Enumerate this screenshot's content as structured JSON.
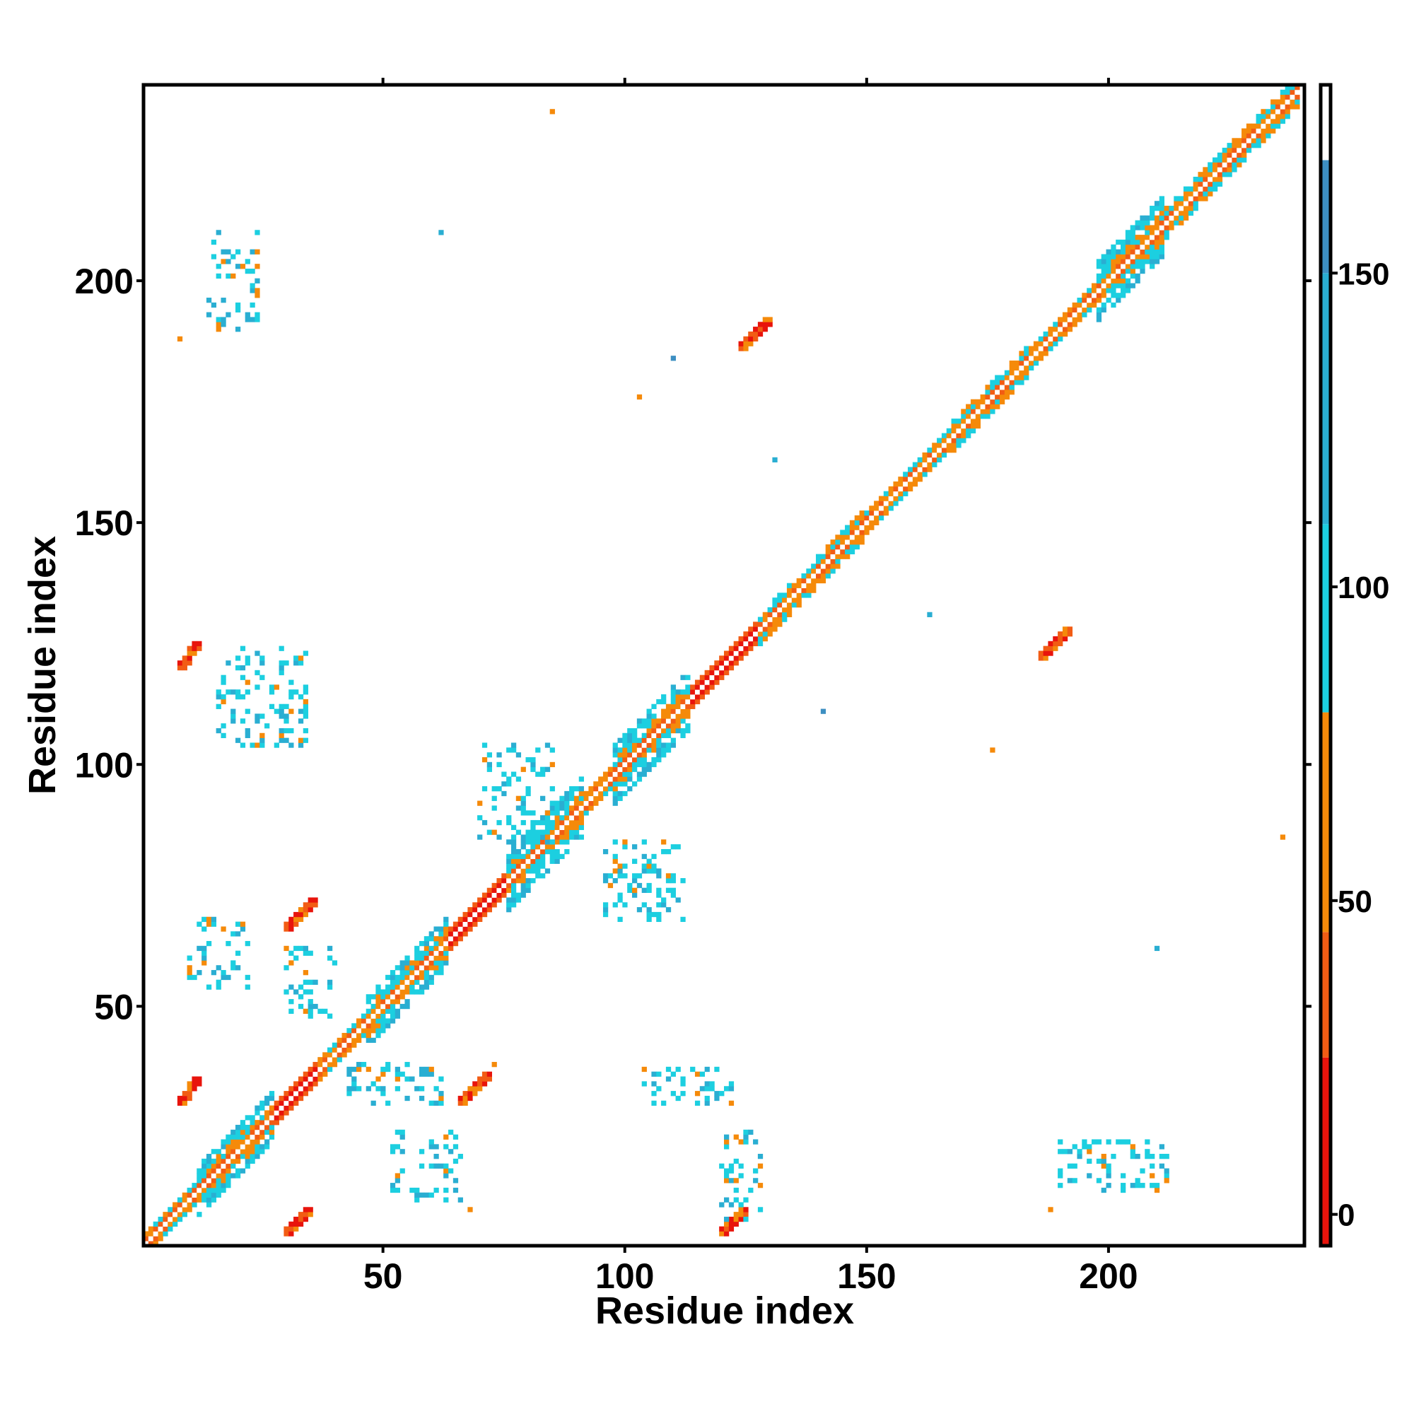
{
  "chart_data": {
    "type": "heatmap",
    "xlabel": "Residue index",
    "ylabel": "Residue index",
    "xlim": [
      1,
      240
    ],
    "ylim": [
      1,
      240
    ],
    "x_ticks": [
      50,
      100,
      150,
      200
    ],
    "x_tick_labels": [
      "50",
      "100",
      "150",
      "200"
    ],
    "y_ticks": [
      50,
      100,
      150,
      200
    ],
    "y_tick_labels": [
      "50",
      "100",
      "150",
      "200"
    ],
    "grid": false,
    "colorbar": {
      "range": [
        -5,
        180
      ],
      "ticks": [
        0,
        50,
        100,
        150
      ],
      "tick_labels": [
        "0",
        "50",
        "100",
        "150"
      ],
      "bands": [
        {
          "from": -5,
          "to": 25,
          "color": "#e8140c"
        },
        {
          "from": 25,
          "to": 45,
          "color": "#f25c14"
        },
        {
          "from": 45,
          "to": 80,
          "color": "#f58a0a"
        },
        {
          "from": 80,
          "to": 110,
          "color": "#1ccfe0"
        },
        {
          "from": 110,
          "to": 150,
          "color": "#2aaed2"
        },
        {
          "from": 150,
          "to": 168,
          "color": "#3d8fc2"
        },
        {
          "from": 168,
          "to": 180,
          "color": "#ffffff"
        }
      ]
    },
    "diagonal": {
      "from": 1,
      "to": 240,
      "segments": [
        {
          "from": 1,
          "to": 12,
          "structure": "mixed",
          "width": 2
        },
        {
          "from": 12,
          "to": 28,
          "structure": "beta",
          "width": 5
        },
        {
          "from": 28,
          "to": 37,
          "structure": "alpha",
          "width": 2
        },
        {
          "from": 37,
          "to": 47,
          "structure": "mixed",
          "width": 2
        },
        {
          "from": 47,
          "to": 64,
          "structure": "beta",
          "width": 5
        },
        {
          "from": 64,
          "to": 76,
          "structure": "alpha",
          "width": 2
        },
        {
          "from": 76,
          "to": 92,
          "structure": "beta",
          "width": 6
        },
        {
          "from": 92,
          "to": 98,
          "structure": "mixed",
          "width": 2
        },
        {
          "from": 98,
          "to": 114,
          "structure": "beta",
          "width": 6
        },
        {
          "from": 114,
          "to": 128,
          "structure": "alpha",
          "width": 2
        },
        {
          "from": 128,
          "to": 150,
          "structure": "mixed",
          "width": 3
        },
        {
          "from": 150,
          "to": 168,
          "structure": "mixed",
          "width": 2
        },
        {
          "from": 168,
          "to": 184,
          "structure": "mixed",
          "width": 3
        },
        {
          "from": 184,
          "to": 198,
          "structure": "mixed",
          "width": 2
        },
        {
          "from": 198,
          "to": 212,
          "structure": "beta",
          "width": 6
        },
        {
          "from": 212,
          "to": 240,
          "structure": "mixed",
          "width": 3
        }
      ]
    },
    "contact_clusters": [
      {
        "x": [
          8,
          12
        ],
        "y": [
          120,
          125
        ],
        "dominant_value": 40
      },
      {
        "x": [
          30,
          36
        ],
        "y": [
          66,
          72
        ],
        "dominant_value": 40
      },
      {
        "x": [
          8,
          12
        ],
        "y": [
          30,
          35
        ],
        "dominant_value": 40
      },
      {
        "x": [
          66,
          72
        ],
        "y": [
          30,
          36
        ],
        "dominant_value": 40
      },
      {
        "x": [
          30,
          35
        ],
        "y": [
          3,
          8
        ],
        "dominant_value": 40
      },
      {
        "x": [
          120,
          125
        ],
        "y": [
          3,
          8
        ],
        "dominant_value": 40
      },
      {
        "x": [
          124,
          130
        ],
        "y": [
          186,
          192
        ],
        "dominant_value": 40
      },
      {
        "x": [
          186,
          192
        ],
        "y": [
          122,
          128
        ],
        "dominant_value": 40
      },
      {
        "x": [
          14,
          24
        ],
        "y": [
          190,
          210
        ],
        "dominant_value": 120
      },
      {
        "x": [
          16,
          34
        ],
        "y": [
          104,
          124
        ],
        "dominant_value": 120
      },
      {
        "x": [
          70,
          86
        ],
        "y": [
          84,
          104
        ],
        "dominant_value": 120
      },
      {
        "x": [
          96,
          112
        ],
        "y": [
          68,
          84
        ],
        "dominant_value": 120
      },
      {
        "x": [
          42,
          62
        ],
        "y": [
          30,
          38
        ],
        "dominant_value": 120
      },
      {
        "x": [
          104,
          122
        ],
        "y": [
          30,
          37
        ],
        "dominant_value": 120
      },
      {
        "x": [
          52,
          66
        ],
        "y": [
          10,
          24
        ],
        "dominant_value": 120
      },
      {
        "x": [
          120,
          128
        ],
        "y": [
          6,
          24
        ],
        "dominant_value": 100
      },
      {
        "x": [
          190,
          212
        ],
        "y": [
          12,
          22
        ],
        "dominant_value": 120
      },
      {
        "x": [
          10,
          22
        ],
        "y": [
          54,
          68
        ],
        "dominant_value": 110
      },
      {
        "x": [
          30,
          40
        ],
        "y": [
          48,
          62
        ],
        "dominant_value": 110
      }
    ],
    "isolated_contacts": [
      {
        "x": 85,
        "y": 235,
        "value": 55
      },
      {
        "x": 62,
        "y": 210,
        "value": 120
      },
      {
        "x": 8,
        "y": 188,
        "value": 55
      },
      {
        "x": 103,
        "y": 176,
        "value": 55
      },
      {
        "x": 110,
        "y": 184,
        "value": 150
      },
      {
        "x": 131,
        "y": 163,
        "value": 120
      },
      {
        "x": 163,
        "y": 131,
        "value": 120
      },
      {
        "x": 141,
        "y": 111,
        "value": 150
      },
      {
        "x": 176,
        "y": 103,
        "value": 55
      },
      {
        "x": 236,
        "y": 85,
        "value": 55
      },
      {
        "x": 210,
        "y": 62,
        "value": 120
      },
      {
        "x": 188,
        "y": 8,
        "value": 55
      },
      {
        "x": 212,
        "y": 14,
        "value": 55
      },
      {
        "x": 73,
        "y": 38,
        "value": 55
      },
      {
        "x": 68,
        "y": 8,
        "value": 55
      }
    ]
  }
}
